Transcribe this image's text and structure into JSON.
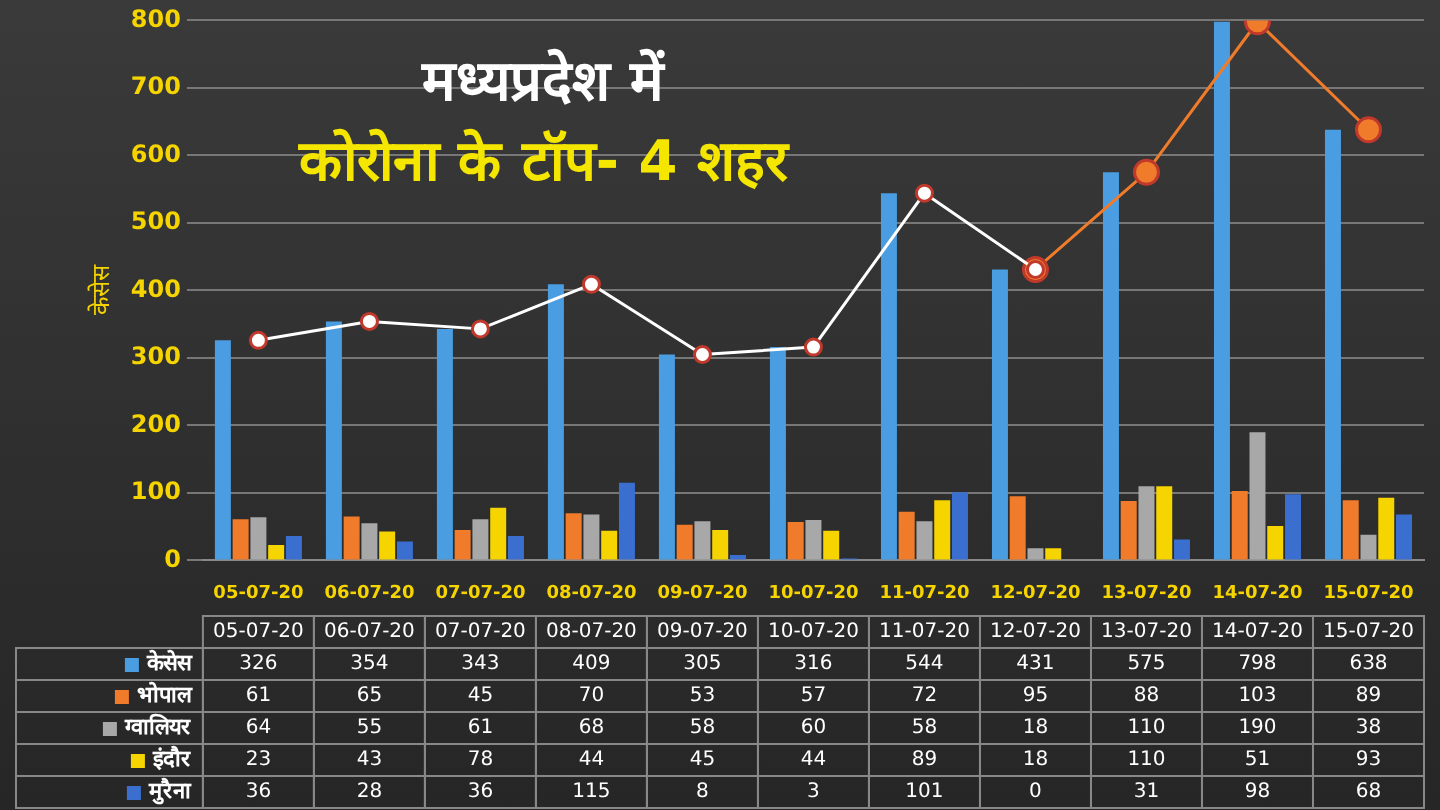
{
  "chart_data": {
    "type": "bar",
    "title": "मध्यप्रदेश में",
    "subtitle": "कोरोना के टॉप- 4 शहर",
    "ylabel": "केसेस",
    "categories": [
      "05-07-20",
      "06-07-20",
      "07-07-20",
      "08-07-20",
      "09-07-20",
      "10-07-20",
      "11-07-20",
      "12-07-20",
      "13-07-20",
      "14-07-20",
      "15-07-20"
    ],
    "series": [
      {
        "name": "केसेस",
        "color": "#4a9de0",
        "values": [
          326,
          354,
          343,
          409,
          305,
          316,
          544,
          431,
          575,
          798,
          638
        ]
      },
      {
        "name": "भोपाल",
        "color": "#f07b2a",
        "values": [
          61,
          65,
          45,
          70,
          53,
          57,
          72,
          95,
          88,
          103,
          89
        ]
      },
      {
        "name": "ग्वालियर",
        "color": "#a8a8a8",
        "values": [
          64,
          55,
          61,
          68,
          58,
          60,
          58,
          18,
          110,
          190,
          38
        ]
      },
      {
        "name": "इंदौर",
        "color": "#f5d400",
        "values": [
          23,
          43,
          78,
          44,
          45,
          44,
          89,
          18,
          110,
          51,
          93
        ]
      },
      {
        "name": "मुरैना",
        "color": "#3a6fd0",
        "values": [
          36,
          28,
          36,
          115,
          8,
          3,
          101,
          0,
          31,
          98,
          68
        ]
      },
      {
        "type": "line",
        "color": "#ffffff",
        "values": [
          326,
          354,
          343,
          409,
          305,
          316,
          544,
          431,
          null,
          null,
          null
        ],
        "value_labels": [
          null,
          null,
          null,
          null,
          null,
          null,
          null,
          null,
          null,
          null,
          null
        ]
      },
      {
        "type": "line",
        "color": "#f07b2a",
        "values": [
          null,
          null,
          null,
          null,
          null,
          null,
          null,
          431,
          575,
          798,
          638
        ],
        "value_labels": [
          null,
          null,
          null,
          null,
          null,
          null,
          null,
          null,
          null,
          null,
          null
        ]
      }
    ],
    "ylim": [
      0,
      800
    ],
    "yticks": [
      0,
      100,
      200,
      300,
      400,
      500,
      600,
      700,
      800
    ],
    "grid": "y",
    "marker": "circle",
    "legend": "bottom",
    "data_labels": true
  }
}
